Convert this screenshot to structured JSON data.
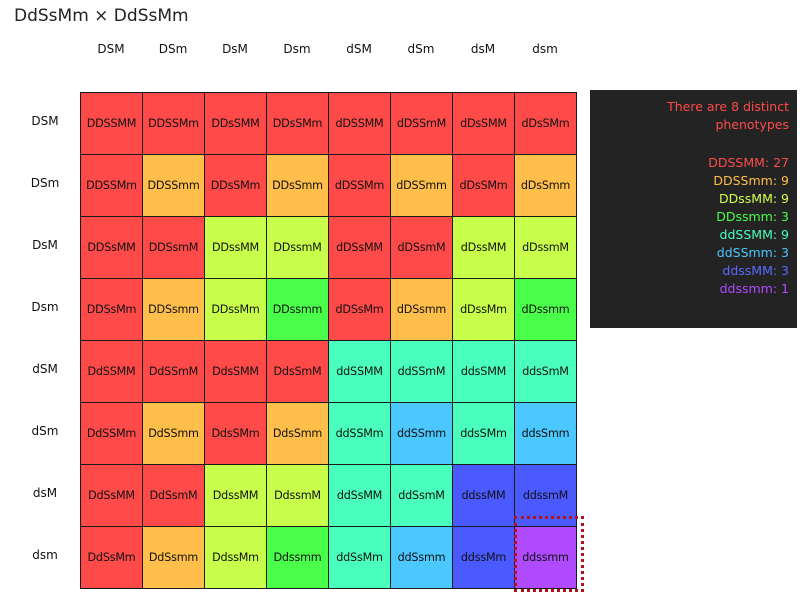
{
  "title": "DdSsMm × DdSsMm",
  "gametes": [
    "DSM",
    "DSm",
    "DsM",
    "Dsm",
    "dSM",
    "dSm",
    "dsM",
    "dsm"
  ],
  "grid": [
    [
      "DDSSMM",
      "DDSSMm",
      "DDsSMM",
      "DDsSMm",
      "dDSSMM",
      "dDSSmM",
      "dDsSMM",
      "dDsSMm"
    ],
    [
      "DDSSMm",
      "DDSSmm",
      "DDsSMm",
      "DDsSmm",
      "dDSSMm",
      "dDSSmm",
      "dDsSMm",
      "dDsSmm"
    ],
    [
      "DDSsMM",
      "DDSsmM",
      "DDssMM",
      "DDssmM",
      "dDSsMM",
      "dDSsmM",
      "dDssMM",
      "dDssmM"
    ],
    [
      "DDSsMm",
      "DDSsmm",
      "DDssMm",
      "DDssmm",
      "dDSsMm",
      "dDSsmm",
      "dDssMm",
      "dDssmm"
    ],
    [
      "DdSSMM",
      "DdSSmM",
      "DdsSMM",
      "DdsSmM",
      "ddSSMM",
      "ddSSmM",
      "ddsSMM",
      "ddsSmM"
    ],
    [
      "DdSSMm",
      "DdSSmm",
      "DdsSMm",
      "DdsSmm",
      "ddSSMm",
      "ddSSmm",
      "ddsSMm",
      "ddsSmm"
    ],
    [
      "DdSsMM",
      "DdSsmM",
      "DdssMM",
      "DdssmM",
      "ddSsMM",
      "ddSsmM",
      "ddssMM",
      "ddssmM"
    ],
    [
      "DdSsMm",
      "DdSsmm",
      "DdssMm",
      "Ddssmm",
      "ddSsMm",
      "ddSsmm",
      "ddssMm",
      "ddssmm"
    ]
  ],
  "grid_phenotypes": [
    [
      0,
      0,
      0,
      0,
      0,
      0,
      0,
      0
    ],
    [
      0,
      1,
      0,
      1,
      0,
      1,
      0,
      1
    ],
    [
      0,
      0,
      2,
      2,
      0,
      0,
      2,
      2
    ],
    [
      0,
      1,
      2,
      3,
      0,
      1,
      2,
      3
    ],
    [
      0,
      0,
      0,
      0,
      4,
      4,
      4,
      4
    ],
    [
      0,
      1,
      0,
      1,
      4,
      5,
      4,
      5
    ],
    [
      0,
      0,
      2,
      2,
      4,
      4,
      6,
      6
    ],
    [
      0,
      1,
      2,
      3,
      4,
      5,
      6,
      7
    ]
  ],
  "phenotypes": [
    {
      "label": "DDSSMM: 27",
      "color": "#ff4a4a",
      "text_color": "#ff4a4a"
    },
    {
      "label": "DDSSmm: 9",
      "color": "#ffbf4a",
      "text_color": "#ffbf4a"
    },
    {
      "label": "DDssMM: 9",
      "color": "#c8ff4a",
      "text_color": "#d4ff4a"
    },
    {
      "label": "DDssmm: 3",
      "color": "#4aff4a",
      "text_color": "#4aff4a"
    },
    {
      "label": "ddSSMM: 9",
      "color": "#4affbd",
      "text_color": "#4affbd"
    },
    {
      "label": "ddSSmm: 3",
      "color": "#4ac8ff",
      "text_color": "#4ac8ff"
    },
    {
      "label": "ddssMM: 3",
      "color": "#4a5aff",
      "text_color": "#5a6aff"
    },
    {
      "label": "ddssmm: 1",
      "color": "#b04aff",
      "text_color": "#b04aff"
    }
  ],
  "summary_heading": "There are 8 distinct phenotypes",
  "highlighted_cell": {
    "row": 7,
    "col": 7
  }
}
